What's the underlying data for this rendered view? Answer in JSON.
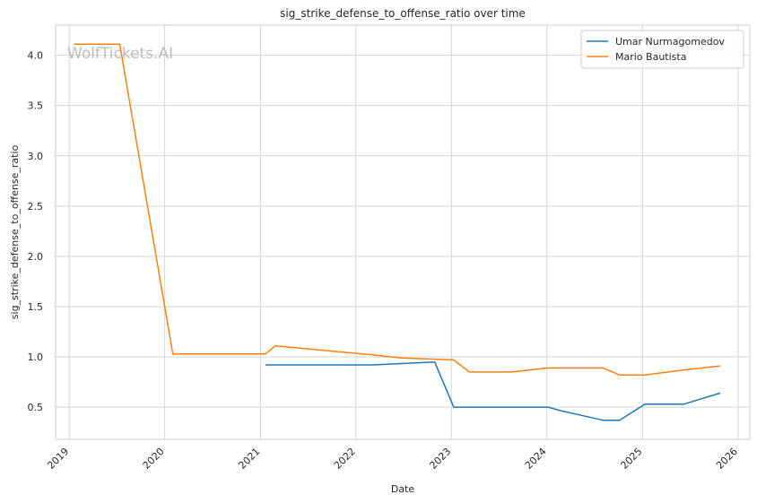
{
  "chart_data": {
    "type": "line",
    "title": "sig_strike_defense_to_offense_ratio over time",
    "xlabel": "Date",
    "ylabel": "sig_strike_defense_to_offense_ratio",
    "watermark": "WolfTickets.AI",
    "grid": true,
    "legend_position": "top-right",
    "x_ticks": [
      "2019",
      "2020",
      "2021",
      "2022",
      "2023",
      "2024",
      "2025",
      "2026"
    ],
    "y_ticks": [
      "0.5",
      "1.0",
      "1.5",
      "2.0",
      "2.5",
      "3.0",
      "3.5",
      "4.0"
    ],
    "xlim": [
      "2018-11-10",
      "2026-02-15"
    ],
    "ylim": [
      0.18,
      4.3
    ],
    "series": [
      {
        "name": "Umar Nurmagomedov",
        "color": "#1f77b4",
        "points": [
          [
            "2021-01-20",
            0.92
          ],
          [
            "2022-03-05",
            0.92
          ],
          [
            "2022-10-29",
            0.95
          ],
          [
            "2023-01-10",
            0.5
          ],
          [
            "2024-01-05",
            0.5
          ],
          [
            "2024-03-02",
            0.46
          ],
          [
            "2024-08-03",
            0.37
          ],
          [
            "2024-10-05",
            0.37
          ],
          [
            "2025-01-10",
            0.53
          ],
          [
            "2025-06-07",
            0.53
          ],
          [
            "2025-10-25",
            0.64
          ]
        ]
      },
      {
        "name": "Mario Bautista",
        "color": "#ff7f0e",
        "points": [
          [
            "2019-01-19",
            4.11
          ],
          [
            "2019-07-13",
            4.11
          ],
          [
            "2020-02-01",
            1.03
          ],
          [
            "2021-01-20",
            1.03
          ],
          [
            "2021-02-27",
            1.11
          ],
          [
            "2022-03-05",
            1.02
          ],
          [
            "2022-06-25",
            0.99
          ],
          [
            "2023-01-10",
            0.97
          ],
          [
            "2023-03-11",
            0.85
          ],
          [
            "2023-08-19",
            0.85
          ],
          [
            "2024-01-05",
            0.89
          ],
          [
            "2024-08-03",
            0.89
          ],
          [
            "2024-10-05",
            0.82
          ],
          [
            "2025-01-10",
            0.82
          ],
          [
            "2025-06-07",
            0.87
          ],
          [
            "2025-10-25",
            0.91
          ]
        ]
      }
    ]
  }
}
